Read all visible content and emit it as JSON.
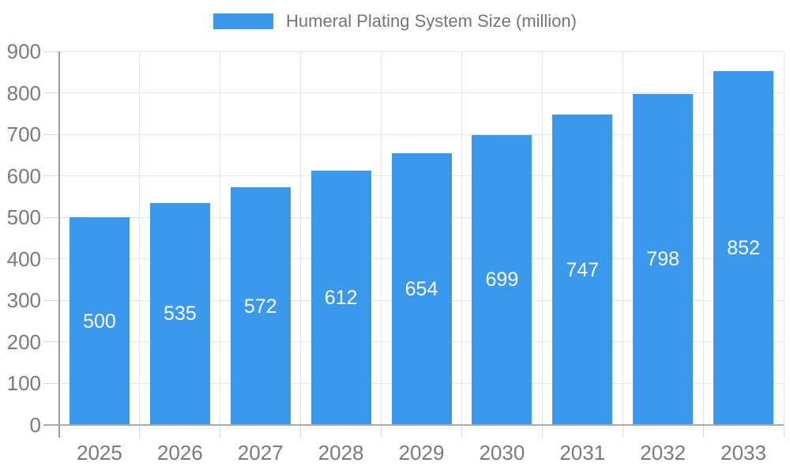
{
  "chart_data": {
    "type": "bar",
    "title": "Humeral Plating System Size (million)",
    "legend": {
      "label": "Humeral Plating System Size (million)",
      "position": "top-center"
    },
    "categories": [
      "2025",
      "2026",
      "2027",
      "2028",
      "2029",
      "2030",
      "2031",
      "2032",
      "2033"
    ],
    "values": [
      500,
      535,
      572,
      612,
      654,
      699,
      747,
      798,
      852
    ],
    "bar_labels": [
      "500",
      "535",
      "572",
      "612",
      "654",
      "699",
      "747",
      "798",
      "852"
    ],
    "xlabel": "",
    "ylabel": "",
    "ylim": [
      0,
      900
    ],
    "ytick_step": 100,
    "yticks": [
      0,
      100,
      200,
      300,
      400,
      500,
      600,
      700,
      800,
      900
    ],
    "grid": "on",
    "colors": {
      "bar": "#3A99EC",
      "bar_label_text": "#ffffff",
      "axis_text": "#7a7a7a",
      "legend_text": "#757575",
      "gridline": "#e6e6e6",
      "tick": "#d9d9d9",
      "y_axis_line": "#9e9e9e",
      "x_axis_line": "#ababab",
      "background": "#ffffff"
    }
  }
}
